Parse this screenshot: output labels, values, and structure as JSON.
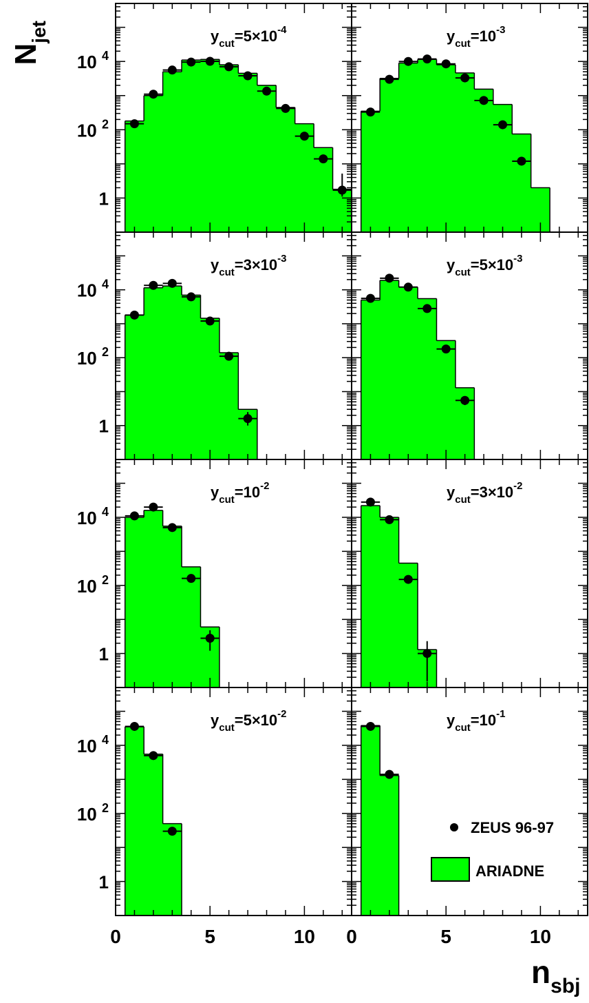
{
  "ylabel": {
    "main": "N",
    "sub": "jet"
  },
  "xlabel": {
    "main": "n",
    "sub": "sbj"
  },
  "ytick_labels": [
    {
      "base": "10",
      "exp": "4",
      "val": 10000
    },
    {
      "base": "10",
      "exp": "2",
      "val": 100
    },
    {
      "base": "1",
      "exp": "",
      "val": 1
    }
  ],
  "xtick_labels": [
    "0",
    "5",
    "10"
  ],
  "legend": {
    "data_label": "ZEUS 96-97",
    "mc_label": "ARIADNE",
    "mc_color": "#00ff00",
    "marker_color": "#000000"
  },
  "chart_data": [
    {
      "type": "bar",
      "panel": "y_cut=5×10^-4",
      "label": {
        "pre": "y",
        "sub": "cut",
        "mid": "=5×10",
        "sup": "-4"
      },
      "ylog": true,
      "ylim": [
        0.1,
        500000
      ],
      "xlim": [
        0,
        12.5
      ],
      "x": [
        1,
        2,
        3,
        4,
        5,
        6,
        7,
        8,
        9,
        10,
        11,
        12
      ],
      "ariadne": [
        180,
        1000,
        5000,
        11000,
        11500,
        8000,
        4500,
        2000,
        450,
        150,
        30,
        1.8
      ],
      "zeus": [
        150,
        1100,
        5600,
        9600,
        10100,
        7000,
        3800,
        1350,
        420,
        65,
        14,
        1.7
      ],
      "zeus_err_low": [
        0,
        0,
        0,
        0,
        0,
        0,
        0,
        0,
        0,
        0,
        0,
        0.6
      ],
      "zeus_err_high": [
        0,
        0,
        0,
        0,
        0,
        0,
        0,
        0,
        0,
        0,
        0,
        3.5
      ]
    },
    {
      "type": "bar",
      "panel": "y_cut=10^-3",
      "label": {
        "pre": "y",
        "sub": "cut",
        "mid": "=10",
        "sup": "-3"
      },
      "ylog": true,
      "ylim": [
        0.1,
        500000
      ],
      "xlim": [
        0,
        12.5
      ],
      "x": [
        1,
        2,
        3,
        4,
        5,
        6,
        7,
        8,
        9,
        10
      ],
      "ariadne": [
        350,
        3200,
        9000,
        11500,
        8000,
        4600,
        1550,
        550,
        75,
        2
      ],
      "zeus": [
        330,
        3000,
        10000,
        11800,
        8500,
        3300,
        720,
        140,
        12,
        null
      ],
      "zeus_err_low": [
        0,
        0,
        0,
        0,
        0,
        0,
        0,
        0,
        0,
        0
      ],
      "zeus_err_high": [
        0,
        0,
        0,
        0,
        0,
        0,
        0,
        0,
        0,
        0
      ]
    },
    {
      "type": "bar",
      "panel": "y_cut=3×10^-3",
      "label": {
        "pre": "y",
        "sub": "cut",
        "mid": "=3×10",
        "sup": "-3"
      },
      "ylog": true,
      "ylim": [
        0.1,
        500000
      ],
      "xlim": [
        0,
        12.5
      ],
      "x": [
        1,
        2,
        3,
        4,
        5,
        6,
        7
      ],
      "ariadne": [
        1800,
        11500,
        13000,
        7000,
        1450,
        140,
        3
      ],
      "zeus": [
        1800,
        13500,
        15500,
        6200,
        1200,
        110,
        1.6
      ],
      "zeus_err_low": [
        0,
        0,
        0,
        0,
        0,
        0,
        0.6
      ],
      "zeus_err_high": [
        0,
        0,
        0,
        0,
        0,
        0,
        0.9
      ]
    },
    {
      "type": "bar",
      "panel": "y_cut=5×10^-3",
      "label": {
        "pre": "y",
        "sub": "cut",
        "mid": "=5×10",
        "sup": "-3"
      },
      "ylog": true,
      "ylim": [
        0.1,
        500000
      ],
      "xlim": [
        0,
        12.5
      ],
      "x": [
        1,
        2,
        3,
        4,
        5,
        6
      ],
      "ariadne": [
        5000,
        19000,
        12000,
        5500,
        320,
        13
      ],
      "zeus": [
        5600,
        22000,
        12000,
        2800,
        180,
        5.5
      ],
      "zeus_err_low": [
        0,
        0,
        0,
        0,
        0,
        1.5
      ],
      "zeus_err_high": [
        0,
        0,
        0,
        0,
        0,
        1.5
      ]
    },
    {
      "type": "bar",
      "panel": "y_cut=10^-2",
      "label": {
        "pre": "y",
        "sub": "cut",
        "mid": "=10",
        "sup": "-2"
      },
      "ylog": true,
      "ylim": [
        0.1,
        500000
      ],
      "xlim": [
        0,
        12.5
      ],
      "x": [
        1,
        2,
        3,
        4,
        5
      ],
      "ariadne": [
        10000,
        16000,
        5500,
        350,
        6
      ],
      "zeus": [
        11000,
        20000,
        5000,
        160,
        2.8
      ],
      "zeus_err_low": [
        0,
        0,
        0,
        0,
        1.6
      ],
      "zeus_err_high": [
        0,
        0,
        0,
        0,
        2
      ]
    },
    {
      "type": "bar",
      "panel": "y_cut=3×10^-2",
      "label": {
        "pre": "y",
        "sub": "cut",
        "mid": "=3×10",
        "sup": "-2"
      },
      "ylog": true,
      "ylim": [
        0.1,
        500000
      ],
      "xlim": [
        0,
        12.5
      ],
      "x": [
        1,
        2,
        3,
        4
      ],
      "ariadne": [
        22000,
        10000,
        450,
        1.3
      ],
      "zeus": [
        28000,
        8500,
        150,
        1
      ],
      "zeus_err_low": [
        0,
        0,
        0,
        0.85
      ],
      "zeus_err_high": [
        0,
        0,
        0,
        1.3
      ]
    },
    {
      "type": "bar",
      "panel": "y_cut=5×10^-2",
      "label": {
        "pre": "y",
        "sub": "cut",
        "mid": "=5×10",
        "sup": "-2"
      },
      "ylog": true,
      "ylim": [
        0.1,
        500000
      ],
      "xlim": [
        0,
        12.5
      ],
      "x": [
        1,
        2,
        3
      ],
      "ariadne": [
        35000,
        5500,
        50
      ],
      "zeus": [
        36000,
        5000,
        30
      ],
      "zeus_err_low": [
        0,
        0,
        0
      ],
      "zeus_err_high": [
        0,
        0,
        0
      ]
    },
    {
      "type": "bar",
      "panel": "y_cut=10^-1",
      "label": {
        "pre": "y",
        "sub": "cut",
        "mid": "=10",
        "sup": "-1"
      },
      "ylog": true,
      "ylim": [
        0.1,
        500000
      ],
      "xlim": [
        0,
        12.5
      ],
      "x": [
        1,
        2
      ],
      "ariadne": [
        38000,
        1300
      ],
      "zeus": [
        36000,
        1400
      ],
      "zeus_err_low": [
        0,
        0
      ],
      "zeus_err_high": [
        0,
        0
      ]
    }
  ]
}
